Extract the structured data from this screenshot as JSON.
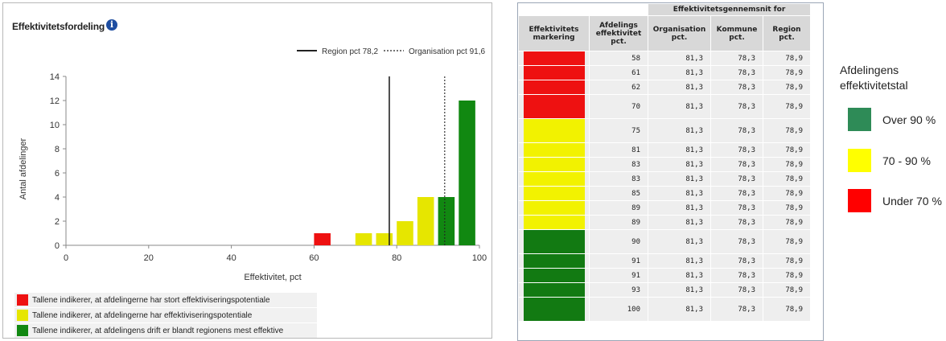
{
  "chart_data": {
    "type": "bar",
    "title": "Effektivitetsfordeling",
    "xlabel": "Effektivitet, pct",
    "ylabel": "Antal afdelinger",
    "xlim": [
      0,
      100
    ],
    "ylim": [
      0,
      14
    ],
    "xticks": [
      "0",
      "20",
      "40",
      "60",
      "80",
      "100"
    ],
    "yticks": [
      "0",
      "2",
      "4",
      "6",
      "8",
      "10",
      "12",
      "14"
    ],
    "bin_width": 4,
    "bars": [
      {
        "x0": 60,
        "value": 1,
        "category": "red"
      },
      {
        "x0": 70,
        "value": 1,
        "category": "yellow"
      },
      {
        "x0": 75,
        "value": 1,
        "category": "yellow"
      },
      {
        "x0": 80,
        "value": 2,
        "category": "yellow"
      },
      {
        "x0": 85,
        "value": 4,
        "category": "yellow"
      },
      {
        "x0": 90,
        "value": 4,
        "category": "green"
      },
      {
        "x0": 95,
        "value": 12,
        "category": "green"
      }
    ],
    "reference_lines": [
      {
        "label": "Region pct 78,2",
        "x": 78.2,
        "style": "solid"
      },
      {
        "label": "Organisation pct 91,6",
        "x": 91.6,
        "style": "dotted"
      }
    ],
    "category_colors": {
      "red": "#ee1111",
      "yellow": "#e6e600",
      "green": "#118811"
    }
  },
  "chart": {
    "info_icon": "info-icon",
    "info_glyph": "i"
  },
  "category_legend": [
    {
      "color": "#ee1111",
      "text": "Tallene indikerer, at afdelingerne har stort effektiviseringspotentiale"
    },
    {
      "color": "#e6e600",
      "text": "Tallene indikerer, at afdelingerne har effektiviseringspotentiale"
    },
    {
      "color": "#118811",
      "text": "Tallene indikerer, at afdelingens drift er blandt regionens mest effektive"
    }
  ],
  "table": {
    "group_header": "Effektivitetsgennemsnit for",
    "headers": [
      "Effektivitets markering",
      "Afdelings effektivitet pct.",
      "Organisation pct.",
      "Kommune pct.",
      "Region pct."
    ],
    "rows": [
      {
        "color": "#ee1111",
        "afd": "58",
        "org": "81,3",
        "kom": "78,3",
        "reg": "78,9"
      },
      {
        "color": "#ee1111",
        "afd": "61",
        "org": "81,3",
        "kom": "78,3",
        "reg": "78,9"
      },
      {
        "color": "#ee1111",
        "afd": "62",
        "org": "81,3",
        "kom": "78,3",
        "reg": "78,9"
      },
      {
        "color": "#ee1111",
        "afd": "70",
        "org": "81,3",
        "kom": "78,3",
        "reg": "78,9",
        "tall": true
      },
      {
        "color": "#f2f200",
        "afd": "75",
        "org": "81,3",
        "kom": "78,3",
        "reg": "78,9",
        "tall": true
      },
      {
        "color": "#f2f200",
        "afd": "81",
        "org": "81,3",
        "kom": "78,3",
        "reg": "78,9"
      },
      {
        "color": "#f2f200",
        "afd": "83",
        "org": "81,3",
        "kom": "78,3",
        "reg": "78,9"
      },
      {
        "color": "#f2f200",
        "afd": "83",
        "org": "81,3",
        "kom": "78,3",
        "reg": "78,9"
      },
      {
        "color": "#f2f200",
        "afd": "85",
        "org": "81,3",
        "kom": "78,3",
        "reg": "78,9"
      },
      {
        "color": "#f2f200",
        "afd": "89",
        "org": "81,3",
        "kom": "78,3",
        "reg": "78,9"
      },
      {
        "color": "#f2f200",
        "afd": "89",
        "org": "81,3",
        "kom": "78,3",
        "reg": "78,9"
      },
      {
        "color": "#127a12",
        "afd": "90",
        "org": "81,3",
        "kom": "78,3",
        "reg": "78,9",
        "tall": true
      },
      {
        "color": "#127a12",
        "afd": "91",
        "org": "81,3",
        "kom": "78,3",
        "reg": "78,9"
      },
      {
        "color": "#127a12",
        "afd": "91",
        "org": "81,3",
        "kom": "78,3",
        "reg": "78,9"
      },
      {
        "color": "#127a12",
        "afd": "93",
        "org": "81,3",
        "kom": "78,3",
        "reg": "78,9"
      },
      {
        "color": "#127a12",
        "afd": "100",
        "org": "81,3",
        "kom": "78,3",
        "reg": "78,9",
        "tall": true
      }
    ]
  },
  "color_legend": {
    "title": "Afdelingens effektivitetstal",
    "items": [
      {
        "color": "#2e8b57",
        "label": "Over 90 %"
      },
      {
        "color": "#ffff00",
        "label": "70 - 90 %"
      },
      {
        "color": "#ff0000",
        "label": "Under 70 %"
      }
    ]
  }
}
